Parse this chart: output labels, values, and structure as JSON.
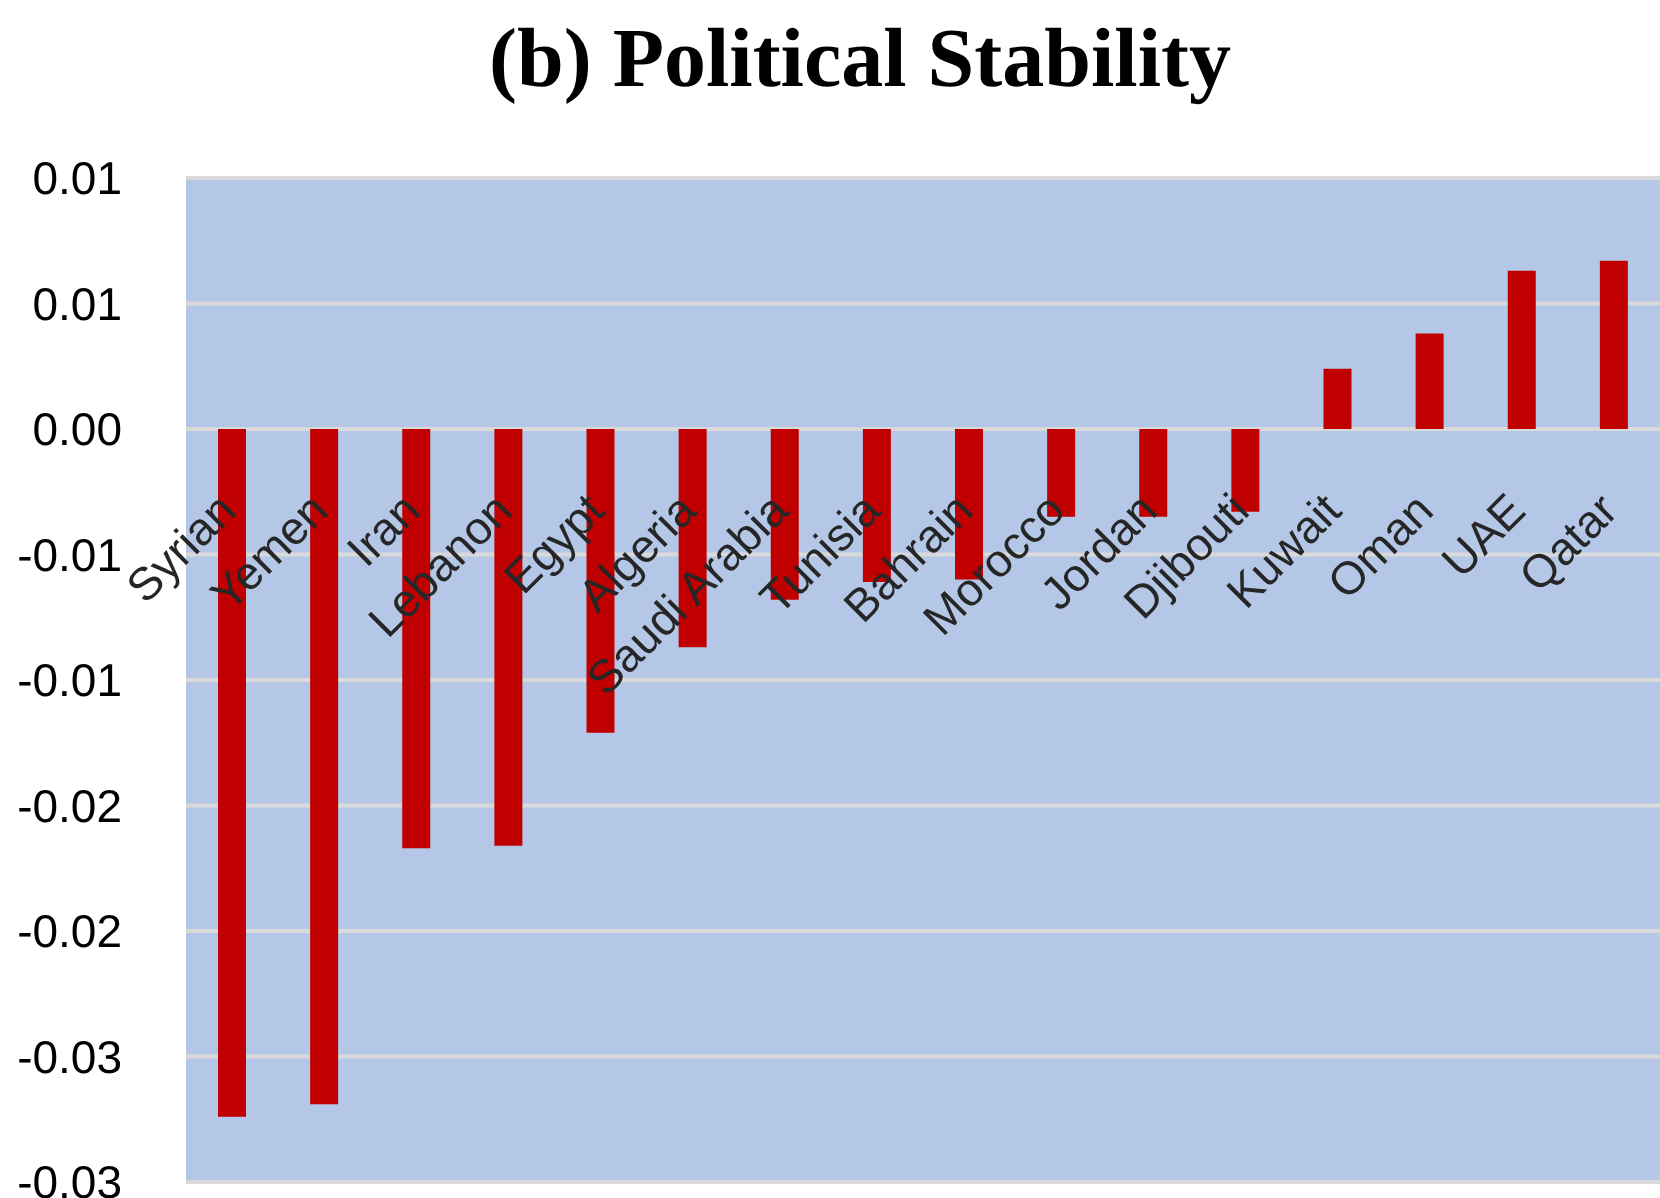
{
  "chart_data": {
    "type": "bar",
    "title": "(b) Political Stability",
    "categories": [
      "Syrian",
      "Yemen",
      "Iran",
      "Lebanon",
      "Egypt",
      "Algeria",
      "Saudi Arabia",
      "Tunisia",
      "Bahrain",
      "Morocco",
      "Jordan",
      "Djibouti",
      "Kuwait",
      "Oman",
      "UAE",
      "Qatar"
    ],
    "values": [
      -0.0274,
      -0.0269,
      -0.0167,
      -0.0166,
      -0.0121,
      -0.0087,
      -0.0068,
      -0.0061,
      -0.006,
      -0.0035,
      -0.0035,
      -0.0033,
      0.0024,
      0.0038,
      0.0063,
      0.0067
    ],
    "color": "#c00000",
    "ylim": [
      -0.03,
      0.01
    ],
    "yticks": [
      0.01,
      {
        "value": 0.005,
        "label": "0.01"
      },
      {
        "value": 0,
        "label": "0.00"
      },
      {
        "value": -0.005,
        "label": "-0.01"
      },
      -0.01,
      {
        "value": -0.015,
        "label": "-0.02"
      },
      -0.02,
      {
        "value": -0.025,
        "label": "-0.03"
      },
      -0.03
    ],
    "grid": "y"
  }
}
